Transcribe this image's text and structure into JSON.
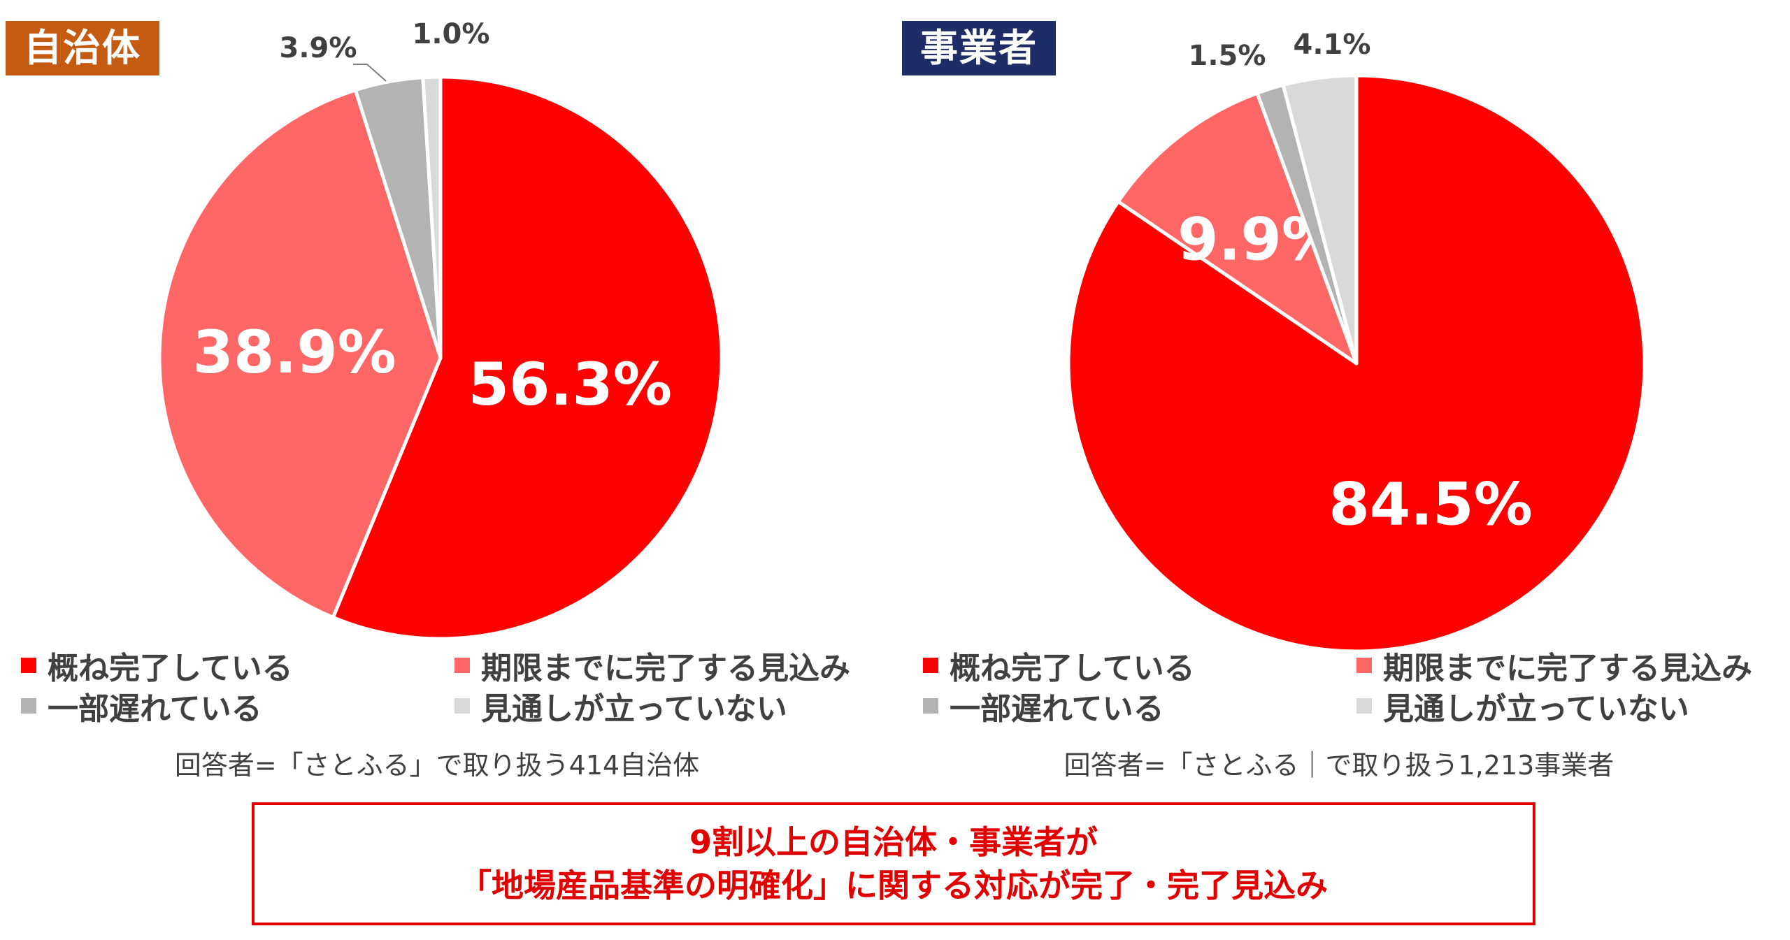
{
  "colors": {
    "red": "#ff0000",
    "salmon": "#ff6666",
    "gray": "#b3b3b3",
    "lightgray": "#d9d9d9",
    "tag_orange": "#c55a11",
    "tag_navy": "#1f2d66"
  },
  "chart_data": [
    {
      "type": "pie",
      "title": "自治体",
      "categories": [
        "概ね完了している",
        "期限までに完了する見込み",
        "一部遅れている",
        "見通しが立っていない"
      ],
      "values": [
        56.3,
        38.9,
        3.9,
        1.0
      ],
      "labels": [
        "56.3%",
        "38.9%",
        "3.9%",
        "1.0%"
      ],
      "legend": "bottom",
      "note": "回答者=「さとふる」で取り扱う414自治体"
    },
    {
      "type": "pie",
      "title": "事業者",
      "categories": [
        "概ね完了している",
        "期限までに完了する見込み",
        "一部遅れている",
        "見通しが立っていない"
      ],
      "values": [
        84.5,
        9.9,
        1.5,
        4.1
      ],
      "labels": [
        "84.5%",
        "9.9%",
        "1.5%",
        "4.1%"
      ],
      "legend": "bottom",
      "note": "回答者=「さとふる｜で取り扱う1,213事業者"
    }
  ],
  "conclusion": {
    "line1": "9割以上の自治体・事業者が",
    "line2": "「地場産品基準の明確化」に関する対応が完了・完了見込み"
  }
}
